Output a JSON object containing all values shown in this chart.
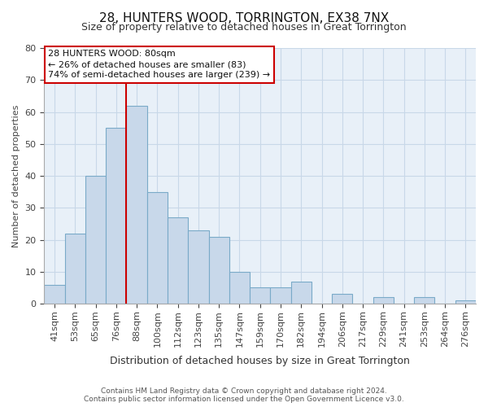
{
  "title": "28, HUNTERS WOOD, TORRINGTON, EX38 7NX",
  "subtitle": "Size of property relative to detached houses in Great Torrington",
  "xlabel": "Distribution of detached houses by size in Great Torrington",
  "ylabel": "Number of detached properties",
  "footer_line1": "Contains HM Land Registry data © Crown copyright and database right 2024.",
  "footer_line2": "Contains public sector information licensed under the Open Government Licence v3.0.",
  "bar_labels": [
    "41sqm",
    "53sqm",
    "65sqm",
    "76sqm",
    "88sqm",
    "100sqm",
    "112sqm",
    "123sqm",
    "135sqm",
    "147sqm",
    "159sqm",
    "170sqm",
    "182sqm",
    "194sqm",
    "206sqm",
    "217sqm",
    "229sqm",
    "241sqm",
    "253sqm",
    "264sqm",
    "276sqm"
  ],
  "bar_values": [
    6,
    22,
    40,
    55,
    62,
    35,
    27,
    23,
    21,
    10,
    5,
    5,
    7,
    0,
    3,
    0,
    2,
    0,
    2,
    0,
    1
  ],
  "bar_color": "#c8d8ea",
  "bar_edge_color": "#7aaac8",
  "grid_color": "#c8d8e8",
  "chart_bg_color": "#e8f0f8",
  "figure_bg_color": "#ffffff",
  "ylim": [
    0,
    80
  ],
  "yticks": [
    0,
    10,
    20,
    30,
    40,
    50,
    60,
    70,
    80
  ],
  "property_line_x": 3.5,
  "property_line_color": "#cc0000",
  "annotation_line1": "28 HUNTERS WOOD: 80sqm",
  "annotation_line2": "← 26% of detached houses are smaller (83)",
  "annotation_line3": "74% of semi-detached houses are larger (239) →",
  "annotation_box_edge_color": "#cc0000",
  "annotation_box_facecolor": "#ffffff",
  "title_fontsize": 11,
  "subtitle_fontsize": 9,
  "ylabel_fontsize": 8,
  "xlabel_fontsize": 9,
  "tick_fontsize": 8,
  "footer_fontsize": 6.5
}
